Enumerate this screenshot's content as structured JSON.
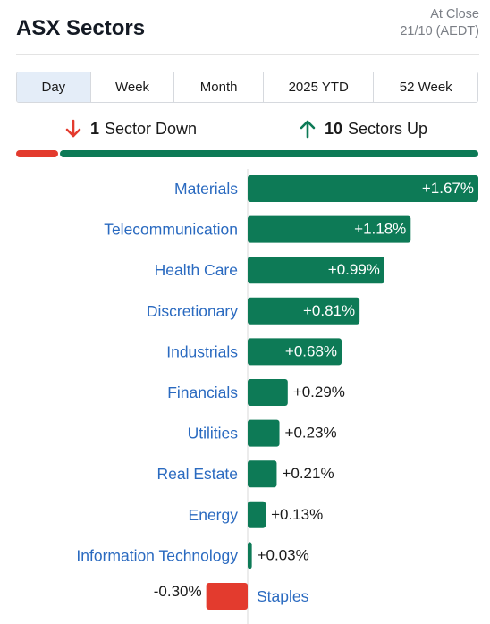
{
  "header": {
    "title": "ASX Sectors",
    "status_line1": "At Close",
    "status_line2": "21/10 (AEDT)"
  },
  "tabs": [
    {
      "label": "Day",
      "active": true
    },
    {
      "label": "Week",
      "active": false
    },
    {
      "label": "Month",
      "active": false
    },
    {
      "label": "2025 YTD",
      "active": false
    },
    {
      "label": "52 Week",
      "active": false
    }
  ],
  "summary": {
    "down_count": "1",
    "down_label": "Sector Down",
    "up_count": "10",
    "up_label": "Sectors Up"
  },
  "colors": {
    "up": "#0d7a56",
    "down": "#e33b2e",
    "label": "#2a6ac0",
    "down_icon": "#e33b2e",
    "up_icon": "#0d7a56"
  },
  "chart_data": {
    "type": "bar",
    "orientation": "horizontal",
    "categories": [
      "Materials",
      "Telecommunication",
      "Health Care",
      "Discretionary",
      "Industrials",
      "Financials",
      "Utilities",
      "Real Estate",
      "Energy",
      "Information Technology",
      "Staples"
    ],
    "values": [
      1.67,
      1.18,
      0.99,
      0.81,
      0.68,
      0.29,
      0.23,
      0.21,
      0.13,
      0.03,
      -0.3
    ],
    "value_labels": [
      "+1.67%",
      "+1.18%",
      "+0.99%",
      "+0.81%",
      "+0.68%",
      "+0.29%",
      "+0.23%",
      "+0.21%",
      "+0.13%",
      "+0.03%",
      "-0.30%"
    ],
    "unit": "%",
    "title": "",
    "xlabel": "",
    "ylabel": "",
    "grid": false,
    "legend": "none"
  }
}
